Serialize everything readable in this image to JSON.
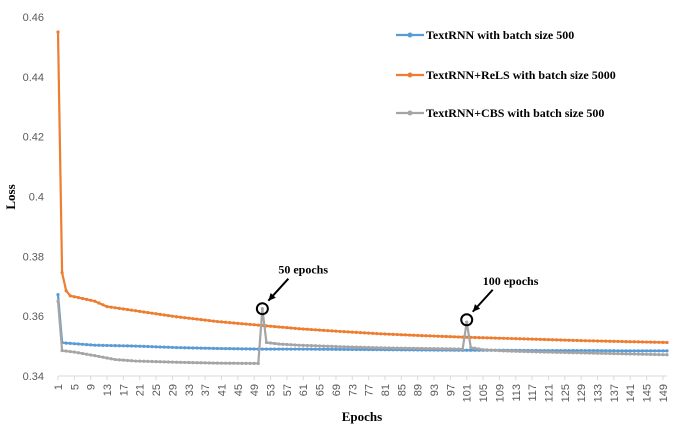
{
  "chart_data": {
    "type": "line",
    "xlabel": "Epochs",
    "ylabel": "Loss",
    "ylim": [
      0.34,
      0.46
    ],
    "yticks": [
      "0.34",
      "0.36",
      "0.38",
      "0.4",
      "0.42",
      "0.44",
      "0.46"
    ],
    "xlim": [
      1,
      150
    ],
    "xticks": [
      1,
      5,
      9,
      13,
      17,
      21,
      25,
      29,
      33,
      37,
      41,
      45,
      49,
      53,
      57,
      61,
      65,
      69,
      73,
      77,
      81,
      85,
      89,
      93,
      97,
      101,
      105,
      109,
      113,
      117,
      121,
      125,
      129,
      133,
      137,
      141,
      145,
      149
    ],
    "grid": false,
    "legend_position": "top-right",
    "series": [
      {
        "name": "TextRNN with batch size 500",
        "color": "#5b9bd5",
        "points": [
          [
            1,
            0.3672
          ],
          [
            2,
            0.3512
          ],
          [
            3,
            0.351
          ],
          [
            5,
            0.3508
          ],
          [
            10,
            0.3503
          ],
          [
            20,
            0.35
          ],
          [
            30,
            0.3495
          ],
          [
            40,
            0.3492
          ],
          [
            50,
            0.349
          ],
          [
            60,
            0.349
          ],
          [
            70,
            0.3489
          ],
          [
            80,
            0.3488
          ],
          [
            90,
            0.3487
          ],
          [
            100,
            0.3486
          ],
          [
            110,
            0.3486
          ],
          [
            120,
            0.3485
          ],
          [
            130,
            0.3485
          ],
          [
            140,
            0.3484
          ],
          [
            150,
            0.3484
          ]
        ]
      },
      {
        "name": "TextRNN+ReLS with batch size 5000",
        "color": "#ed7d31",
        "points": [
          [
            1,
            0.455
          ],
          [
            2,
            0.3745
          ],
          [
            3,
            0.3685
          ],
          [
            4,
            0.3668
          ],
          [
            5,
            0.3665
          ],
          [
            10,
            0.365
          ],
          [
            13,
            0.3632
          ],
          [
            20,
            0.3618
          ],
          [
            30,
            0.3598
          ],
          [
            40,
            0.3582
          ],
          [
            50,
            0.357
          ],
          [
            60,
            0.3558
          ],
          [
            70,
            0.3549
          ],
          [
            80,
            0.3541
          ],
          [
            90,
            0.3535
          ],
          [
            100,
            0.353
          ],
          [
            110,
            0.3526
          ],
          [
            120,
            0.3522
          ],
          [
            130,
            0.3518
          ],
          [
            140,
            0.3515
          ],
          [
            150,
            0.3512
          ]
        ]
      },
      {
        "name": "TextRNN+CBS with batch size 500",
        "color": "#a5a5a5",
        "points": [
          [
            1,
            0.365
          ],
          [
            2,
            0.3485
          ],
          [
            5,
            0.348
          ],
          [
            10,
            0.3468
          ],
          [
            15,
            0.3455
          ],
          [
            20,
            0.345
          ],
          [
            30,
            0.3446
          ],
          [
            40,
            0.3443
          ],
          [
            50,
            0.3442
          ],
          [
            51,
            0.3625
          ],
          [
            52,
            0.3512
          ],
          [
            55,
            0.3507
          ],
          [
            60,
            0.3503
          ],
          [
            70,
            0.3498
          ],
          [
            80,
            0.3494
          ],
          [
            90,
            0.3492
          ],
          [
            100,
            0.349
          ],
          [
            101,
            0.358
          ],
          [
            102,
            0.3495
          ],
          [
            105,
            0.3488
          ],
          [
            110,
            0.3484
          ],
          [
            120,
            0.348
          ],
          [
            130,
            0.3477
          ],
          [
            140,
            0.3474
          ],
          [
            150,
            0.3471
          ]
        ]
      }
    ],
    "annotations": [
      {
        "text": "50 epochs",
        "x": 51,
        "y": 0.3625
      },
      {
        "text": "100 epochs",
        "x": 101,
        "y": 0.3588
      }
    ]
  }
}
